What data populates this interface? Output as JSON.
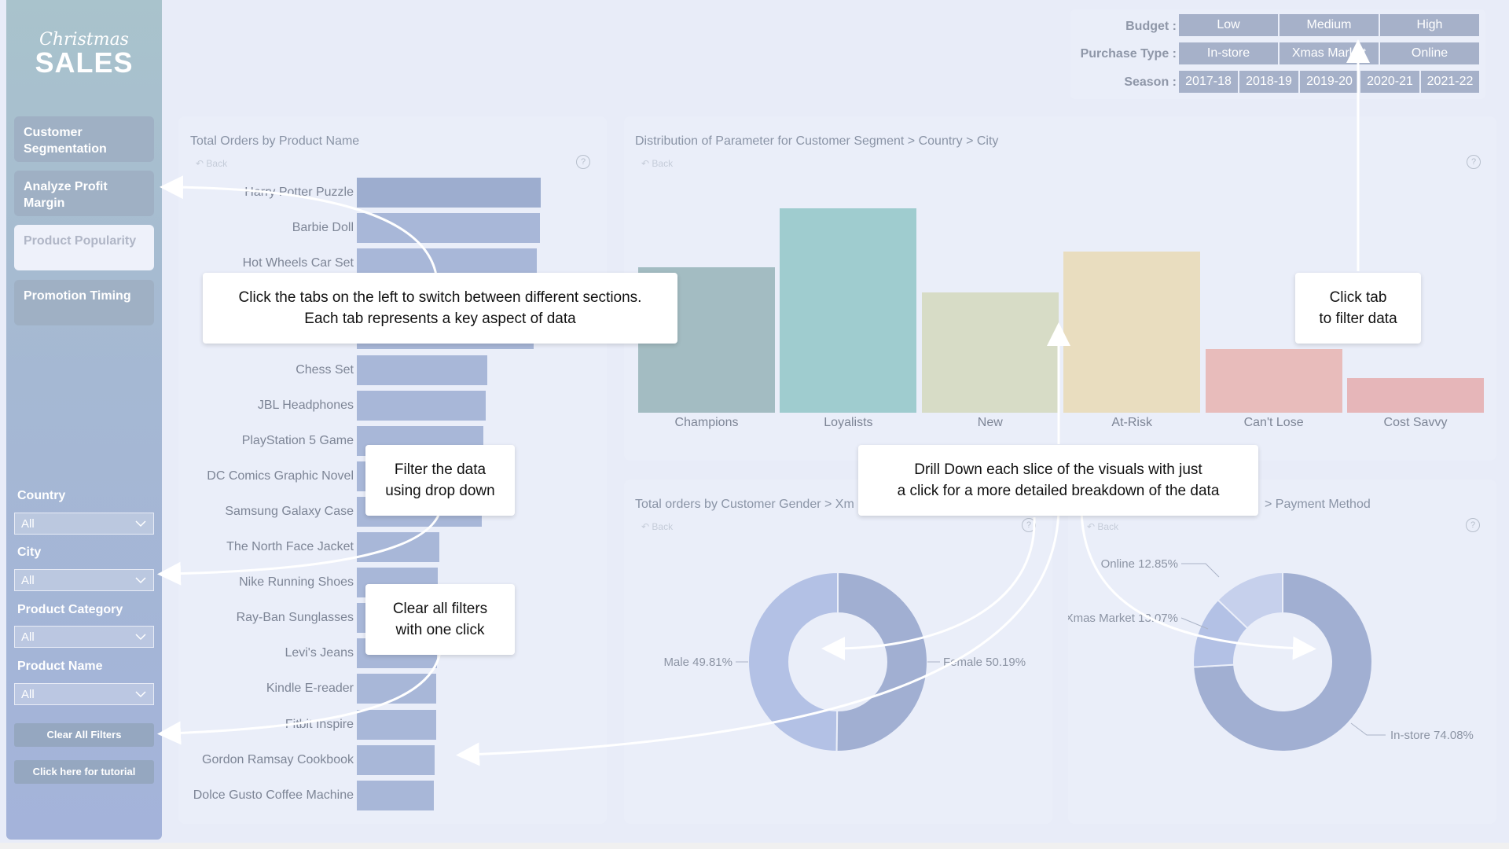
{
  "logo": {
    "script": "Christmas",
    "main": "SALES"
  },
  "tabs": [
    {
      "label": "Customer Segmentation"
    },
    {
      "label": "Analyze Profit Margin"
    },
    {
      "label": "Product Popularity"
    },
    {
      "label": "Promotion Timing"
    }
  ],
  "filters": [
    {
      "label": "Country",
      "value": "All"
    },
    {
      "label": "City",
      "value": "All"
    },
    {
      "label": "Product Category",
      "value": "All"
    },
    {
      "label": "Product Name",
      "value": "All"
    }
  ],
  "buttons": {
    "clear": "Clear All Filters",
    "tutorial": "Click here for tutorial"
  },
  "slicers": {
    "budget": {
      "label": "Budget :",
      "options": [
        "Low",
        "Medium",
        "High"
      ]
    },
    "purchase_type": {
      "label": "Purchase Type :",
      "options": [
        "In-store",
        "Xmas Market",
        "Online"
      ]
    },
    "season": {
      "label": "Season :",
      "options": [
        "2017-18",
        "2018-19",
        "2019-20",
        "2020-21",
        "2021-22"
      ]
    }
  },
  "panels": {
    "orders": {
      "title": "Total Orders by Product Name",
      "back": "Back"
    },
    "distribution": {
      "title": "Distribution of Parameter for Customer Segment > Country > City",
      "back": "Back"
    },
    "gender": {
      "title": "Total orders by Customer Gender > Xm",
      "back": "Back"
    },
    "payment": {
      "title": "> Payment Method",
      "back": "Back"
    }
  },
  "chart_data": [
    {
      "type": "bar",
      "orientation": "horizontal",
      "title": "Total Orders by Product Name",
      "categories": [
        "Harry Potter Puzzle",
        "Barbie Doll",
        "Hot Wheels Car Set",
        "",
        "",
        "Chess Set",
        "JBL Headphones",
        "PlayStation 5 Game",
        "DC Comics Graphic Novel",
        "Samsung Galaxy Case",
        "The North Face Jacket",
        "Nike Running Shoes",
        "Ray-Ban Sunglasses",
        "Levi's Jeans",
        "Kindle E-reader",
        "Fitbit Inspire",
        "Gordon Ramsay Cookbook",
        "Dolce Gusto Coffee Machine"
      ],
      "values": [
        100,
        99.5,
        98,
        97,
        96,
        71,
        70,
        69,
        68,
        68,
        45,
        44,
        44,
        43.5,
        43,
        43,
        42.5,
        42
      ]
    },
    {
      "type": "bar",
      "title": "Distribution of Parameter for Customer Segment > Country > City",
      "categories": [
        "Champions",
        "Loyalists",
        "New",
        "At-Risk",
        "Can't Lose",
        "Cost Savvy"
      ],
      "values": [
        71,
        100,
        59,
        79,
        31,
        17
      ],
      "colors": [
        "#a3bcc2",
        "#9fcccf",
        "#d7dcc6",
        "#e9ddbf",
        "#e8bcbb",
        "#e6b6b9"
      ]
    },
    {
      "type": "pie",
      "title": "Total orders by Customer Gender",
      "slices": [
        {
          "label": "Male",
          "value": 49.81,
          "text": "Male 49.81%"
        },
        {
          "label": "Female",
          "value": 50.19,
          "text": "Female 50.19%"
        }
      ],
      "colors": [
        "#b3c1e5",
        "#a1afd2"
      ]
    },
    {
      "type": "pie",
      "title": "Payment Method",
      "slices": [
        {
          "label": "In-store",
          "value": 74.08,
          "text": "In-store 74.08%"
        },
        {
          "label": "Xmas Market",
          "value": 13.07,
          "text": "Xmas Market 13.07%"
        },
        {
          "label": "Online",
          "value": 12.85,
          "text": "Online 12.85%"
        }
      ],
      "colors": [
        "#a1afd2",
        "#b3c1e5",
        "#c6d0ec"
      ]
    }
  ],
  "callouts": {
    "tabs": [
      "Click the tabs on the left to switch between different sections.",
      "Each tab represents a key aspect of data"
    ],
    "filter_tab": [
      "Click tab",
      "to filter data"
    ],
    "dropdown": [
      "Filter the data",
      "using drop down"
    ],
    "drill": [
      "Drill Down each slice of the visuals with just",
      "a click for a more detailed breakdown of the data"
    ],
    "clear": [
      "Clear all filters",
      "with one click"
    ]
  },
  "colors": {
    "bar": "#a8b7d8",
    "sidebar": "#a5b8d3",
    "slicer_button": "#a6b1c9",
    "background": "#e8ecf8"
  }
}
